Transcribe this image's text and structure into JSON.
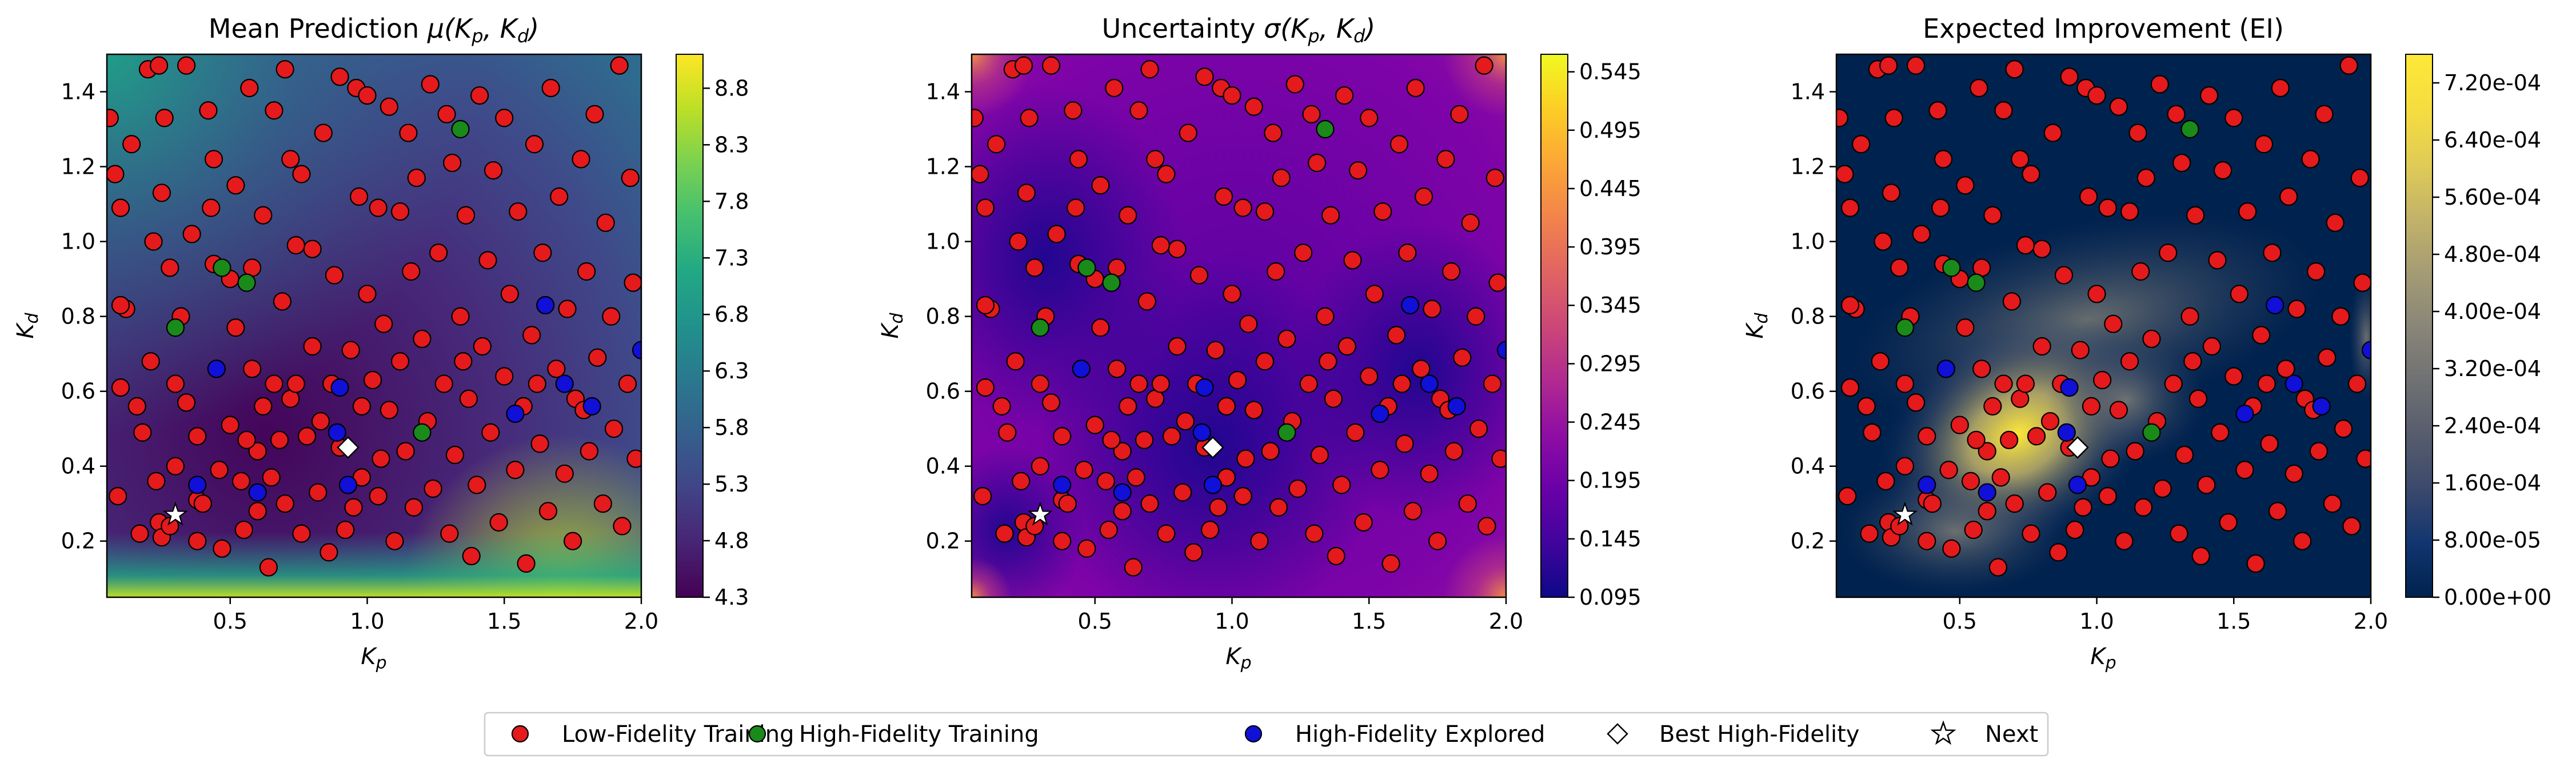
{
  "legend": {
    "items": [
      {
        "label": "Low-Fidelity Training",
        "color": "#e41a1c",
        "marker": "circle"
      },
      {
        "label": "High-Fidelity Training",
        "color": "#1a8a1a",
        "marker": "circle"
      },
      {
        "label": "High-Fidelity Explored",
        "color": "#1010d8",
        "marker": "circle"
      },
      {
        "label": "Best High-Fidelity",
        "color": "#ffffff",
        "marker": "diamond"
      },
      {
        "label": "Next",
        "color": "#ffffff",
        "marker": "star"
      }
    ]
  },
  "chart_data": [
    {
      "type": "heatmap",
      "title": "Mean Prediction μ(K_p, K_d)",
      "title_parts": [
        "Mean Prediction ",
        "μ(",
        "K",
        "p",
        ", ",
        "K",
        "d",
        ")"
      ],
      "xlabel": "K_p",
      "ylabel": "K_d",
      "xlim": [
        0.05,
        2.0
      ],
      "ylim": [
        0.05,
        1.5
      ],
      "x_ticks": [
        "0.5",
        "1.0",
        "1.5",
        "2.0"
      ],
      "y_ticks": [
        "0.2",
        "0.4",
        "0.6",
        "0.8",
        "1.0",
        "1.2",
        "1.4"
      ],
      "colormap": "viridis",
      "colorbar_range": [
        4.3,
        9.1
      ],
      "colorbar_ticks": [
        "4.3",
        "4.8",
        "5.3",
        "5.8",
        "6.3",
        "6.8",
        "7.3",
        "7.8",
        "8.3",
        "8.8"
      ]
    },
    {
      "type": "heatmap",
      "title": "Uncertainty σ(K_p, K_d)",
      "title_parts": [
        "Uncertainty ",
        "σ(",
        "K",
        "p",
        ", ",
        "K",
        "d",
        ")"
      ],
      "xlabel": "K_p",
      "ylabel": "K_d",
      "xlim": [
        0.05,
        2.0
      ],
      "ylim": [
        0.05,
        1.5
      ],
      "x_ticks": [
        "0.5",
        "1.0",
        "1.5",
        "2.0"
      ],
      "y_ticks": [
        "0.2",
        "0.4",
        "0.6",
        "0.8",
        "1.0",
        "1.2",
        "1.4"
      ],
      "colormap": "plasma",
      "colorbar_range": [
        0.095,
        0.56
      ],
      "colorbar_ticks": [
        "0.095",
        "0.145",
        "0.195",
        "0.245",
        "0.295",
        "0.345",
        "0.395",
        "0.445",
        "0.495",
        "0.545"
      ]
    },
    {
      "type": "heatmap",
      "title": "Expected Improvement (EI)",
      "title_parts": [
        "Expected Improvement (EI)"
      ],
      "xlabel": "K_p",
      "ylabel": "K_d",
      "xlim": [
        0.05,
        2.0
      ],
      "ylim": [
        0.05,
        1.5
      ],
      "x_ticks": [
        "0.5",
        "1.0",
        "1.5",
        "2.0"
      ],
      "y_ticks": [
        "0.2",
        "0.4",
        "0.6",
        "0.8",
        "1.0",
        "1.2",
        "1.4"
      ],
      "colormap": "cividis",
      "colorbar_range": [
        0.0,
        0.00076
      ],
      "colorbar_ticks": [
        "0.00e+00",
        "8.00e-05",
        "1.60e-04",
        "2.40e-04",
        "3.20e-04",
        "4.00e-04",
        "4.80e-04",
        "5.60e-04",
        "6.40e-04",
        "7.20e-04"
      ]
    }
  ],
  "points": {
    "low_fidelity": [
      [
        0.06,
        1.33
      ],
      [
        0.08,
        1.18
      ],
      [
        0.1,
        1.09
      ],
      [
        0.12,
        0.82
      ],
      [
        0.1,
        0.83
      ],
      [
        0.1,
        0.61
      ],
      [
        0.09,
        0.32
      ],
      [
        0.16,
        0.56
      ],
      [
        0.18,
        0.49
      ],
      [
        0.17,
        0.22
      ],
      [
        0.2,
        1.46
      ],
      [
        0.24,
        1.47
      ],
      [
        0.26,
        1.33
      ],
      [
        0.25,
        1.13
      ],
      [
        0.22,
        1.0
      ],
      [
        0.21,
        0.68
      ],
      [
        0.23,
        0.36
      ],
      [
        0.24,
        0.25
      ],
      [
        0.25,
        0.21
      ],
      [
        0.28,
        0.24
      ],
      [
        0.3,
        0.4
      ],
      [
        0.3,
        0.62
      ],
      [
        0.32,
        0.8
      ],
      [
        0.34,
        0.57
      ],
      [
        0.34,
        1.47
      ],
      [
        0.36,
        1.02
      ],
      [
        0.38,
        0.48
      ],
      [
        0.38,
        0.31
      ],
      [
        0.38,
        0.2
      ],
      [
        0.4,
        0.3
      ],
      [
        0.42,
        1.35
      ],
      [
        0.43,
        1.09
      ],
      [
        0.44,
        0.94
      ],
      [
        0.45,
        0.66
      ],
      [
        0.46,
        0.39
      ],
      [
        0.47,
        0.18
      ],
      [
        0.5,
        0.51
      ],
      [
        0.52,
        0.77
      ],
      [
        0.52,
        1.15
      ],
      [
        0.54,
        0.36
      ],
      [
        0.55,
        0.23
      ],
      [
        0.57,
        1.41
      ],
      [
        0.58,
        0.93
      ],
      [
        0.58,
        0.66
      ],
      [
        0.6,
        0.44
      ],
      [
        0.6,
        0.28
      ],
      [
        0.62,
        0.56
      ],
      [
        0.62,
        1.07
      ],
      [
        0.64,
        0.13
      ],
      [
        0.66,
        1.35
      ],
      [
        0.66,
        0.62
      ],
      [
        0.68,
        0.47
      ],
      [
        0.69,
        0.84
      ],
      [
        0.7,
        0.3
      ],
      [
        0.72,
        0.58
      ],
      [
        0.72,
        1.22
      ],
      [
        0.74,
        0.62
      ],
      [
        0.76,
        1.18
      ],
      [
        0.76,
        0.22
      ],
      [
        0.78,
        0.48
      ],
      [
        0.8,
        0.98
      ],
      [
        0.8,
        0.72
      ],
      [
        0.82,
        0.33
      ],
      [
        0.83,
        0.52
      ],
      [
        0.84,
        1.29
      ],
      [
        0.86,
        0.17
      ],
      [
        0.87,
        0.62
      ],
      [
        0.88,
        0.91
      ],
      [
        0.9,
        0.45
      ],
      [
        0.9,
        1.44
      ],
      [
        0.92,
        0.23
      ],
      [
        0.94,
        0.71
      ],
      [
        0.95,
        0.29
      ],
      [
        0.96,
        1.41
      ],
      [
        0.97,
        1.12
      ],
      [
        0.98,
        0.37
      ],
      [
        0.98,
        0.56
      ],
      [
        1.0,
        0.86
      ],
      [
        1.0,
        1.39
      ],
      [
        1.02,
        0.63
      ],
      [
        1.04,
        1.09
      ],
      [
        1.04,
        0.32
      ],
      [
        1.06,
        0.78
      ],
      [
        1.08,
        1.36
      ],
      [
        1.08,
        0.55
      ],
      [
        1.1,
        0.2
      ],
      [
        1.12,
        1.08
      ],
      [
        1.12,
        0.68
      ],
      [
        1.14,
        0.44
      ],
      [
        1.16,
        0.92
      ],
      [
        1.17,
        0.29
      ],
      [
        1.18,
        1.17
      ],
      [
        1.2,
        0.74
      ],
      [
        1.22,
        0.52
      ],
      [
        1.23,
        1.42
      ],
      [
        1.24,
        0.34
      ],
      [
        1.26,
        0.97
      ],
      [
        1.28,
        0.62
      ],
      [
        1.29,
        1.34
      ],
      [
        1.3,
        0.22
      ],
      [
        1.31,
        1.21
      ],
      [
        1.32,
        0.43
      ],
      [
        1.34,
        0.8
      ],
      [
        1.36,
        1.07
      ],
      [
        1.37,
        0.58
      ],
      [
        1.38,
        0.16
      ],
      [
        1.4,
        0.35
      ],
      [
        1.41,
        1.39
      ],
      [
        1.42,
        0.72
      ],
      [
        1.44,
        0.95
      ],
      [
        1.45,
        0.49
      ],
      [
        1.46,
        1.19
      ],
      [
        1.48,
        0.25
      ],
      [
        1.5,
        0.64
      ],
      [
        1.5,
        1.33
      ],
      [
        1.52,
        0.86
      ],
      [
        1.54,
        0.39
      ],
      [
        1.55,
        1.08
      ],
      [
        1.57,
        0.56
      ],
      [
        1.58,
        0.14
      ],
      [
        1.6,
        0.75
      ],
      [
        1.61,
        1.26
      ],
      [
        1.63,
        0.46
      ],
      [
        1.64,
        0.97
      ],
      [
        1.66,
        0.28
      ],
      [
        1.67,
        1.41
      ],
      [
        1.69,
        0.66
      ],
      [
        1.7,
        1.12
      ],
      [
        1.72,
        0.38
      ],
      [
        1.73,
        0.82
      ],
      [
        1.75,
        0.2
      ],
      [
        1.76,
        0.58
      ],
      [
        1.78,
        1.22
      ],
      [
        1.8,
        0.92
      ],
      [
        1.81,
        0.44
      ],
      [
        1.83,
        1.34
      ],
      [
        1.84,
        0.69
      ],
      [
        1.86,
        0.3
      ],
      [
        1.87,
        1.05
      ],
      [
        1.89,
        0.8
      ],
      [
        1.9,
        0.5
      ],
      [
        1.92,
        1.47
      ],
      [
        1.93,
        0.24
      ],
      [
        1.95,
        0.62
      ],
      [
        1.96,
        1.17
      ],
      [
        1.97,
        0.89
      ],
      [
        1.98,
        0.42
      ],
      [
        0.14,
        1.26
      ],
      [
        0.44,
        1.22
      ],
      [
        0.65,
        0.37
      ],
      [
        0.28,
        0.93
      ],
      [
        0.5,
        0.9
      ],
      [
        0.56,
        0.47
      ],
      [
        0.74,
        0.99
      ],
      [
        1.15,
        1.29
      ],
      [
        1.35,
        0.68
      ],
      [
        1.62,
        0.62
      ],
      [
        1.79,
        0.55
      ],
      [
        0.7,
        1.46
      ],
      [
        1.05,
        0.42
      ]
    ],
    "high_fidelity_training": [
      [
        0.47,
        0.93
      ],
      [
        0.56,
        0.89
      ],
      [
        0.3,
        0.77
      ],
      [
        1.34,
        1.3
      ],
      [
        1.2,
        0.49
      ]
    ],
    "high_fidelity_explored": [
      [
        0.38,
        0.35
      ],
      [
        0.45,
        0.66
      ],
      [
        0.6,
        0.33
      ],
      [
        0.9,
        0.61
      ],
      [
        0.89,
        0.49
      ],
      [
        0.93,
        0.35
      ],
      [
        1.54,
        0.54
      ],
      [
        1.65,
        0.83
      ],
      [
        1.72,
        0.62
      ],
      [
        1.82,
        0.56
      ],
      [
        2.0,
        0.71
      ]
    ],
    "best_high_fidelity": [
      0.93,
      0.45
    ],
    "next": [
      0.3,
      0.27
    ]
  }
}
